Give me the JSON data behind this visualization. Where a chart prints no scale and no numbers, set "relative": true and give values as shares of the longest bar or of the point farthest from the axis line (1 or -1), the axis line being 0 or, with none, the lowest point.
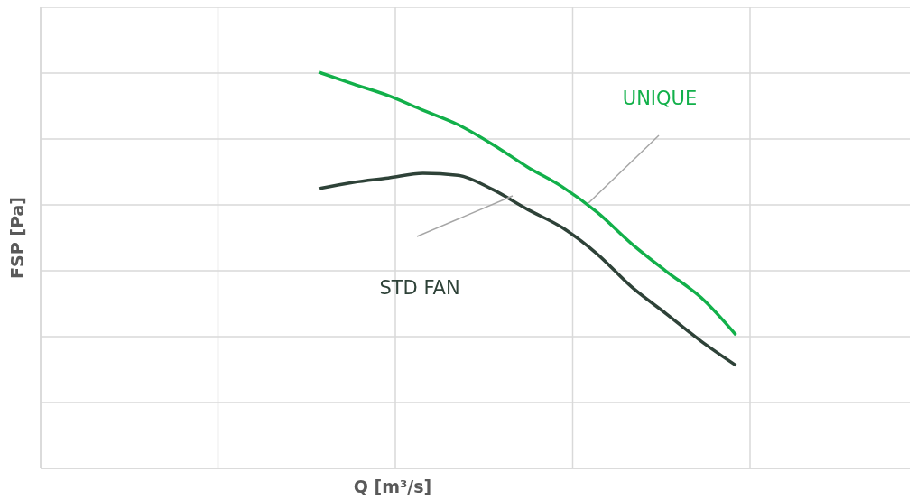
{
  "chart_data": {
    "type": "line",
    "relative": true,
    "xlabel": "Q [m³/s]",
    "ylabel": "FSP [Pa]",
    "grid": true,
    "legend": false,
    "marker": "none",
    "line_style": "solid",
    "categories": [
      null,
      null,
      null,
      null,
      null,
      null,
      null,
      null,
      null,
      null,
      null,
      null,
      null,
      null,
      null,
      null,
      null,
      null,
      null,
      null,
      null,
      null,
      null,
      null,
      null,
      null,
      null,
      null,
      null,
      null,
      null,
      null,
      null,
      null,
      null,
      null,
      null,
      null,
      null,
      null,
      null,
      null,
      null,
      null,
      null,
      null,
      null,
      null,
      null,
      null,
      null
    ],
    "series": [
      {
        "name": "UNIQUE",
        "color": "#12b04a",
        "values": [
          null,
          null,
          null,
          null,
          null,
          null,
          null,
          null,
          null,
          null,
          null,
          null,
          null,
          null,
          null,
          null,
          1.0,
          null,
          0.97,
          null,
          0.941,
          null,
          0.904,
          null,
          0.868,
          null,
          0.818,
          null,
          0.761,
          null,
          0.711,
          null,
          0.647,
          null,
          0.567,
          null,
          0.497,
          null,
          0.431,
          null,
          0.337,
          null,
          null,
          null,
          null,
          null,
          null,
          null,
          null,
          null,
          null
        ]
      },
      {
        "name": "STD FAN",
        "color": "#2e4238",
        "values": [
          null,
          null,
          null,
          null,
          null,
          null,
          null,
          null,
          null,
          null,
          null,
          null,
          null,
          null,
          null,
          null,
          0.706,
          null,
          0.722,
          null,
          0.733,
          null,
          0.745,
          null,
          0.74,
          null,
          0.704,
          null,
          0.654,
          null,
          0.608,
          null,
          0.542,
          null,
          0.458,
          null,
          0.39,
          null,
          0.321,
          null,
          0.26,
          null,
          null,
          null,
          null,
          null,
          null,
          null,
          null,
          null,
          null
        ]
      }
    ]
  }
}
